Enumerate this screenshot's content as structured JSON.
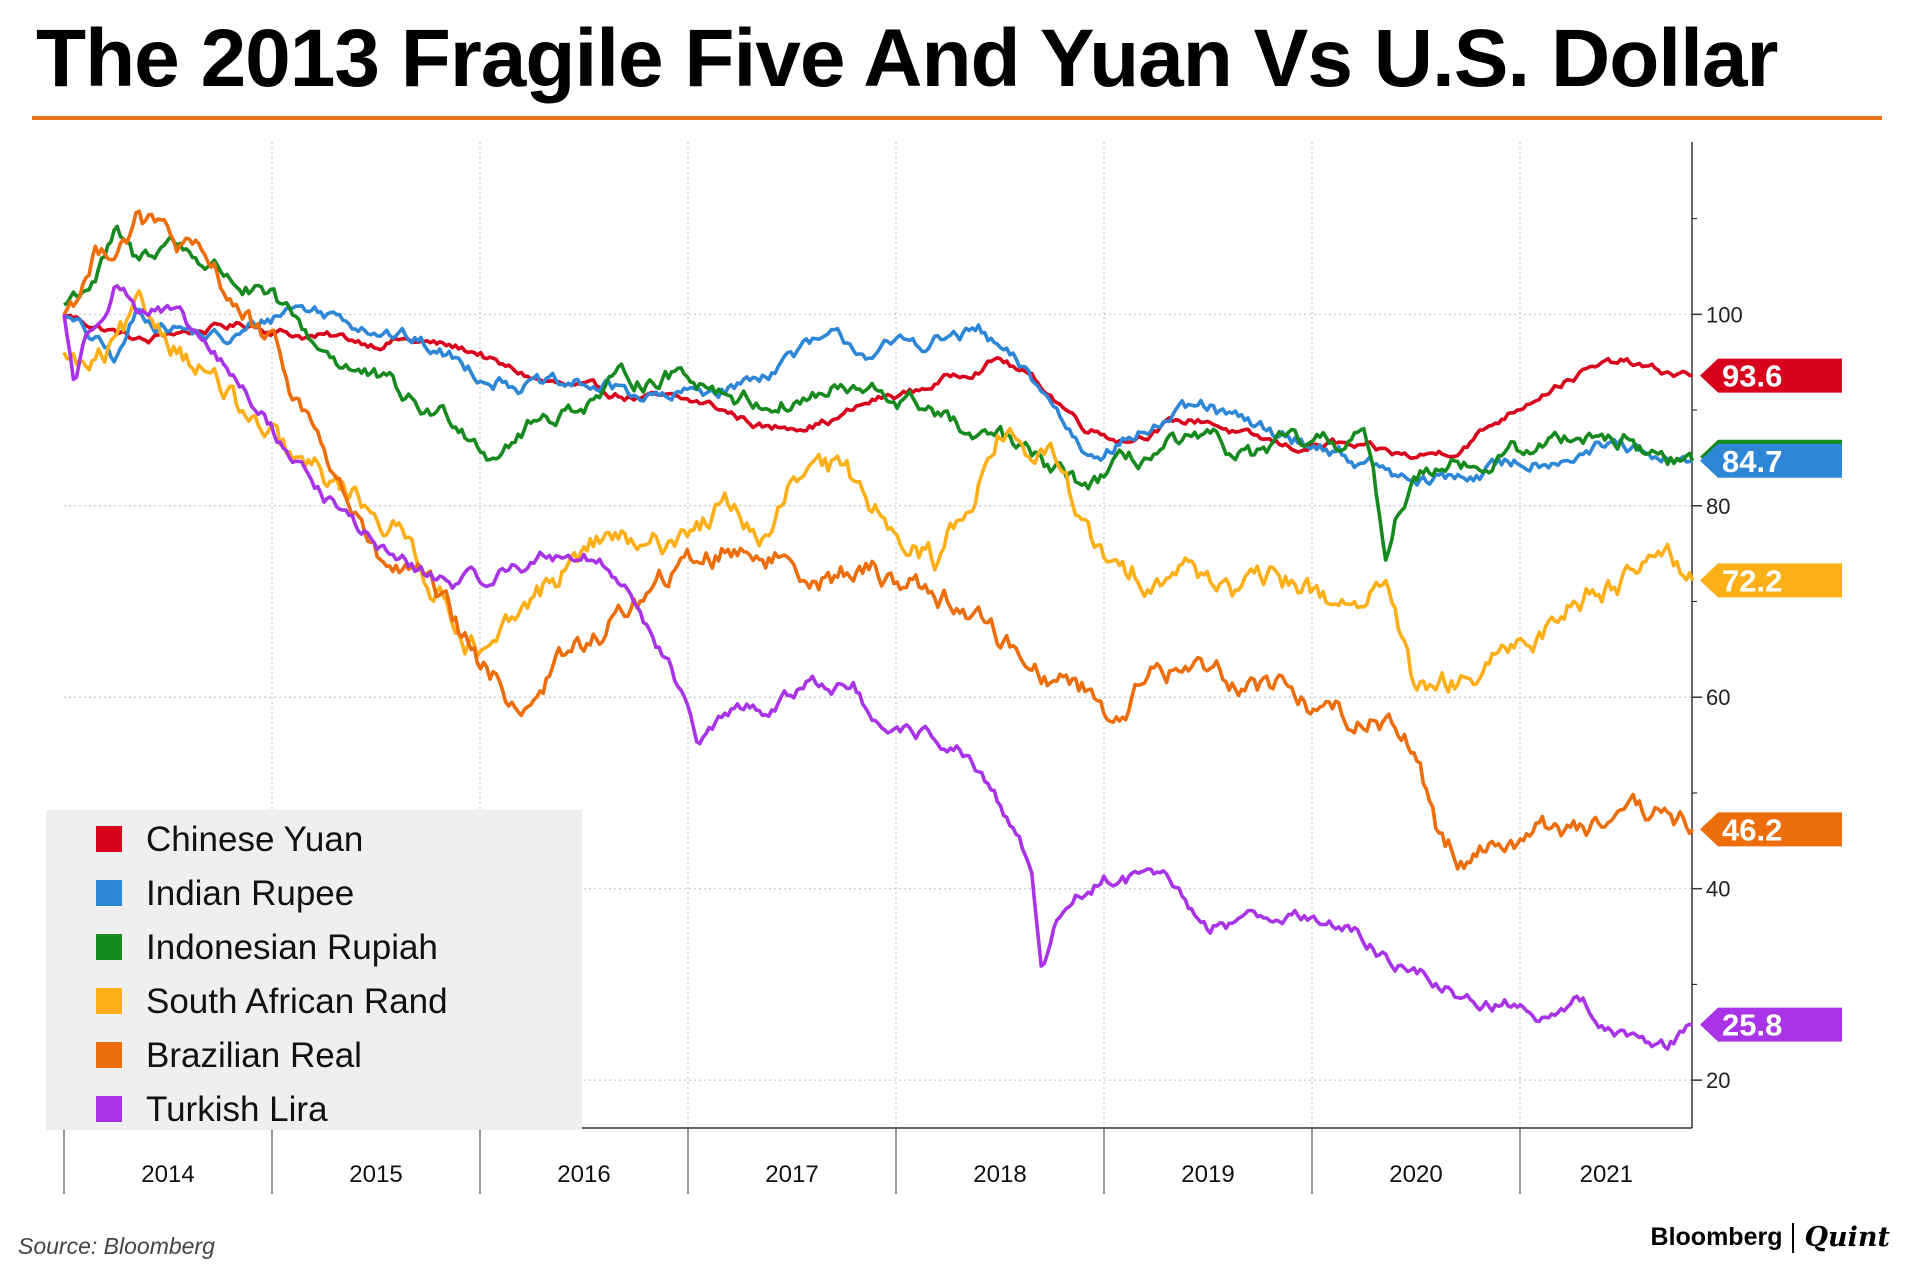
{
  "chart_data": {
    "type": "line",
    "title": "The 2013 Fragile Five And Yuan Vs U.S. Dollar",
    "source": "Source: Bloomberg",
    "brand": {
      "primary": "Bloomberg",
      "secondary": "Quint"
    },
    "xlabel": "",
    "ylabel": "",
    "x_tick_labels": [
      "2014",
      "2015",
      "2016",
      "2017",
      "2018",
      "2019",
      "2020",
      "2021"
    ],
    "xlim": [
      2013.5,
      2021.33
    ],
    "ylim": [
      15,
      118
    ],
    "y_ticks": [
      20,
      40,
      60,
      80,
      100
    ],
    "y_axis_side": "right",
    "grid": true,
    "legend_position": "bottom-left",
    "title_rule_color": "#e8731a",
    "series": [
      {
        "name": "Chinese Yuan",
        "color": "#d9001b",
        "last_value": 93.6,
        "x": [
          2013.5,
          2013.9,
          2014.0,
          2014.4,
          2014.6,
          2015.0,
          2015.1,
          2015.5,
          2015.6,
          2015.8,
          2016.0,
          2016.2,
          2016.4,
          2016.6,
          2016.9,
          2017.0,
          2017.2,
          2017.4,
          2017.6,
          2018.0,
          2018.2,
          2018.4,
          2018.6,
          2018.8,
          2019.0,
          2019.2,
          2019.4,
          2019.6,
          2019.8,
          2020.0,
          2020.2,
          2020.4,
          2020.6,
          2020.8,
          2021.0,
          2021.15,
          2021.33
        ],
        "values": [
          100,
          97,
          98,
          99,
          98,
          97,
          97.5,
          96,
          94.5,
          93,
          92,
          91.5,
          91,
          90.5,
          88,
          88.5,
          89,
          91,
          92,
          95.5,
          92.5,
          88.5,
          87,
          88.5,
          89,
          87,
          86,
          86.5,
          85.5,
          85,
          86,
          89,
          92,
          94,
          95,
          94,
          93.6
        ]
      },
      {
        "name": "Indian Rupee",
        "color": "#2e86d6",
        "last_value": 84.7,
        "x": [
          2013.5,
          2013.75,
          2013.85,
          2014.0,
          2014.3,
          2014.6,
          2015.0,
          2015.1,
          2015.3,
          2015.5,
          2015.7,
          2015.9,
          2016.0,
          2016.2,
          2016.4,
          2016.6,
          2016.8,
          2017.0,
          2017.2,
          2017.4,
          2017.6,
          2017.9,
          2018.0,
          2018.2,
          2018.4,
          2018.6,
          2018.8,
          2019.0,
          2019.2,
          2019.4,
          2019.6,
          2019.8,
          2020.0,
          2020.2,
          2020.4,
          2020.6,
          2020.8,
          2021.0,
          2021.15,
          2021.33
        ],
        "values": [
          100,
          95,
          100,
          99,
          97,
          101,
          99,
          98,
          96,
          94,
          93,
          92,
          92.5,
          92,
          91,
          92,
          93,
          96,
          97,
          96,
          97,
          98,
          96,
          92,
          86,
          87,
          89,
          90,
          88,
          87,
          86,
          84,
          82,
          83,
          84,
          85,
          86,
          86,
          84,
          84.7
        ]
      },
      {
        "name": "Indonesian Rupiah",
        "color": "#168a1e",
        "last_value": 84.7,
        "x": [
          2013.5,
          2013.65,
          2013.75,
          2013.85,
          2014.0,
          2014.3,
          2014.5,
          2014.7,
          2015.0,
          2015.2,
          2015.4,
          2015.55,
          2015.7,
          2016.0,
          2016.2,
          2016.5,
          2016.8,
          2017.0,
          2017.2,
          2017.5,
          2017.7,
          2017.9,
          2018.0,
          2018.2,
          2018.4,
          2018.6,
          2018.8,
          2019.0,
          2019.2,
          2019.4,
          2019.6,
          2019.75,
          2019.8,
          2019.85,
          2019.9,
          2020.0,
          2020.2,
          2020.3,
          2020.4,
          2020.6,
          2020.8,
          2021.0,
          2021.15,
          2021.33
        ],
        "values": [
          101,
          104,
          108,
          105,
          108,
          104,
          101,
          97,
          93,
          90,
          89,
          86,
          88,
          91,
          93,
          94,
          91,
          91,
          92,
          91,
          90,
          86,
          87,
          84,
          82,
          84,
          86,
          86,
          85,
          86,
          86,
          88,
          82,
          73,
          79,
          83,
          86,
          84,
          85,
          86,
          88,
          87,
          85,
          84.7
        ]
      },
      {
        "name": "South African Rand",
        "color": "#fdaf17",
        "last_value": 72.2,
        "x": [
          2013.5,
          2013.6,
          2013.7,
          2013.85,
          2014.0,
          2014.2,
          2014.4,
          2014.6,
          2014.8,
          2015.0,
          2015.2,
          2015.4,
          2015.55,
          2015.7,
          2015.85,
          2016.0,
          2016.15,
          2016.3,
          2016.5,
          2016.7,
          2016.9,
          2017.0,
          2017.2,
          2017.4,
          2017.55,
          2017.7,
          2017.85,
          2018.0,
          2018.1,
          2018.3,
          2018.45,
          2018.6,
          2018.8,
          2019.0,
          2019.2,
          2019.4,
          2019.6,
          2019.8,
          2019.9,
          2020.0,
          2020.2,
          2020.4,
          2020.6,
          2020.8,
          2021.0,
          2021.2,
          2021.33
        ],
        "values": [
          96,
          94,
          95,
          99,
          98,
          94,
          88,
          84,
          82,
          80,
          75,
          68,
          64,
          68,
          72,
          75,
          77,
          74,
          78,
          80,
          76,
          82,
          83,
          80,
          78,
          74,
          81,
          88,
          86,
          84,
          75,
          72,
          74,
          73,
          71,
          72,
          70,
          71,
          69,
          59,
          61,
          63,
          67,
          71,
          73,
          77,
          72.2
        ]
      },
      {
        "name": "Brazilian Real",
        "color": "#ec6d0a",
        "last_value": 46.2,
        "x": [
          2013.5,
          2013.65,
          2013.85,
          2014.0,
          2014.3,
          2014.5,
          2014.7,
          2014.9,
          2015.0,
          2015.2,
          2015.35,
          2015.5,
          2015.7,
          2015.8,
          2015.9,
          2016.0,
          2016.2,
          2016.4,
          2016.6,
          2016.8,
          2017.0,
          2017.2,
          2017.4,
          2017.6,
          2017.8,
          2018.0,
          2018.2,
          2018.4,
          2018.55,
          2018.7,
          2018.9,
          2019.0,
          2019.2,
          2019.4,
          2019.6,
          2019.8,
          2019.95,
          2020.0,
          2020.1,
          2020.2,
          2020.4,
          2020.6,
          2020.8,
          2021.0,
          2021.2,
          2021.33
        ],
        "values": [
          100,
          106,
          110,
          108,
          102,
          96,
          88,
          79,
          74,
          72,
          68,
          63,
          59,
          62,
          64,
          65,
          69,
          72,
          75,
          76,
          74,
          73,
          73,
          72,
          70,
          66,
          63,
          61,
          58,
          62,
          63,
          63,
          62,
          61,
          58,
          58,
          57,
          54,
          46,
          44,
          45,
          46,
          47,
          46,
          47,
          46.2
        ]
      },
      {
        "name": "Turkish Lira",
        "color": "#a933e6",
        "last_value": 25.8,
        "x": [
          2013.5,
          2013.55,
          2013.6,
          2013.75,
          2013.85,
          2014.0,
          2014.2,
          2014.4,
          2014.6,
          2014.8,
          2015.0,
          2015.2,
          2015.35,
          2015.5,
          2015.7,
          2015.9,
          2016.0,
          2016.2,
          2016.4,
          2016.55,
          2016.7,
          2016.9,
          2017.0,
          2017.1,
          2017.3,
          2017.45,
          2017.6,
          2017.8,
          2018.0,
          2018.15,
          2018.2,
          2018.25,
          2018.35,
          2018.5,
          2018.7,
          2018.8,
          2019.0,
          2019.2,
          2019.4,
          2019.6,
          2019.8,
          2020.0,
          2020.2,
          2020.4,
          2020.6,
          2020.75,
          2020.9,
          2021.0,
          2021.2,
          2021.33
        ],
        "values": [
          100,
          93,
          97,
          104,
          101,
          100,
          96,
          91,
          85,
          80,
          76,
          73,
          72,
          72,
          74,
          75,
          75,
          72,
          64,
          55,
          58,
          59,
          60,
          62,
          61,
          55,
          56,
          55,
          48,
          42,
          32,
          36,
          39,
          41,
          41,
          40,
          36,
          37,
          38,
          36,
          34,
          31,
          29,
          28,
          27,
          29,
          26,
          25,
          24,
          25.8
        ]
      }
    ]
  }
}
